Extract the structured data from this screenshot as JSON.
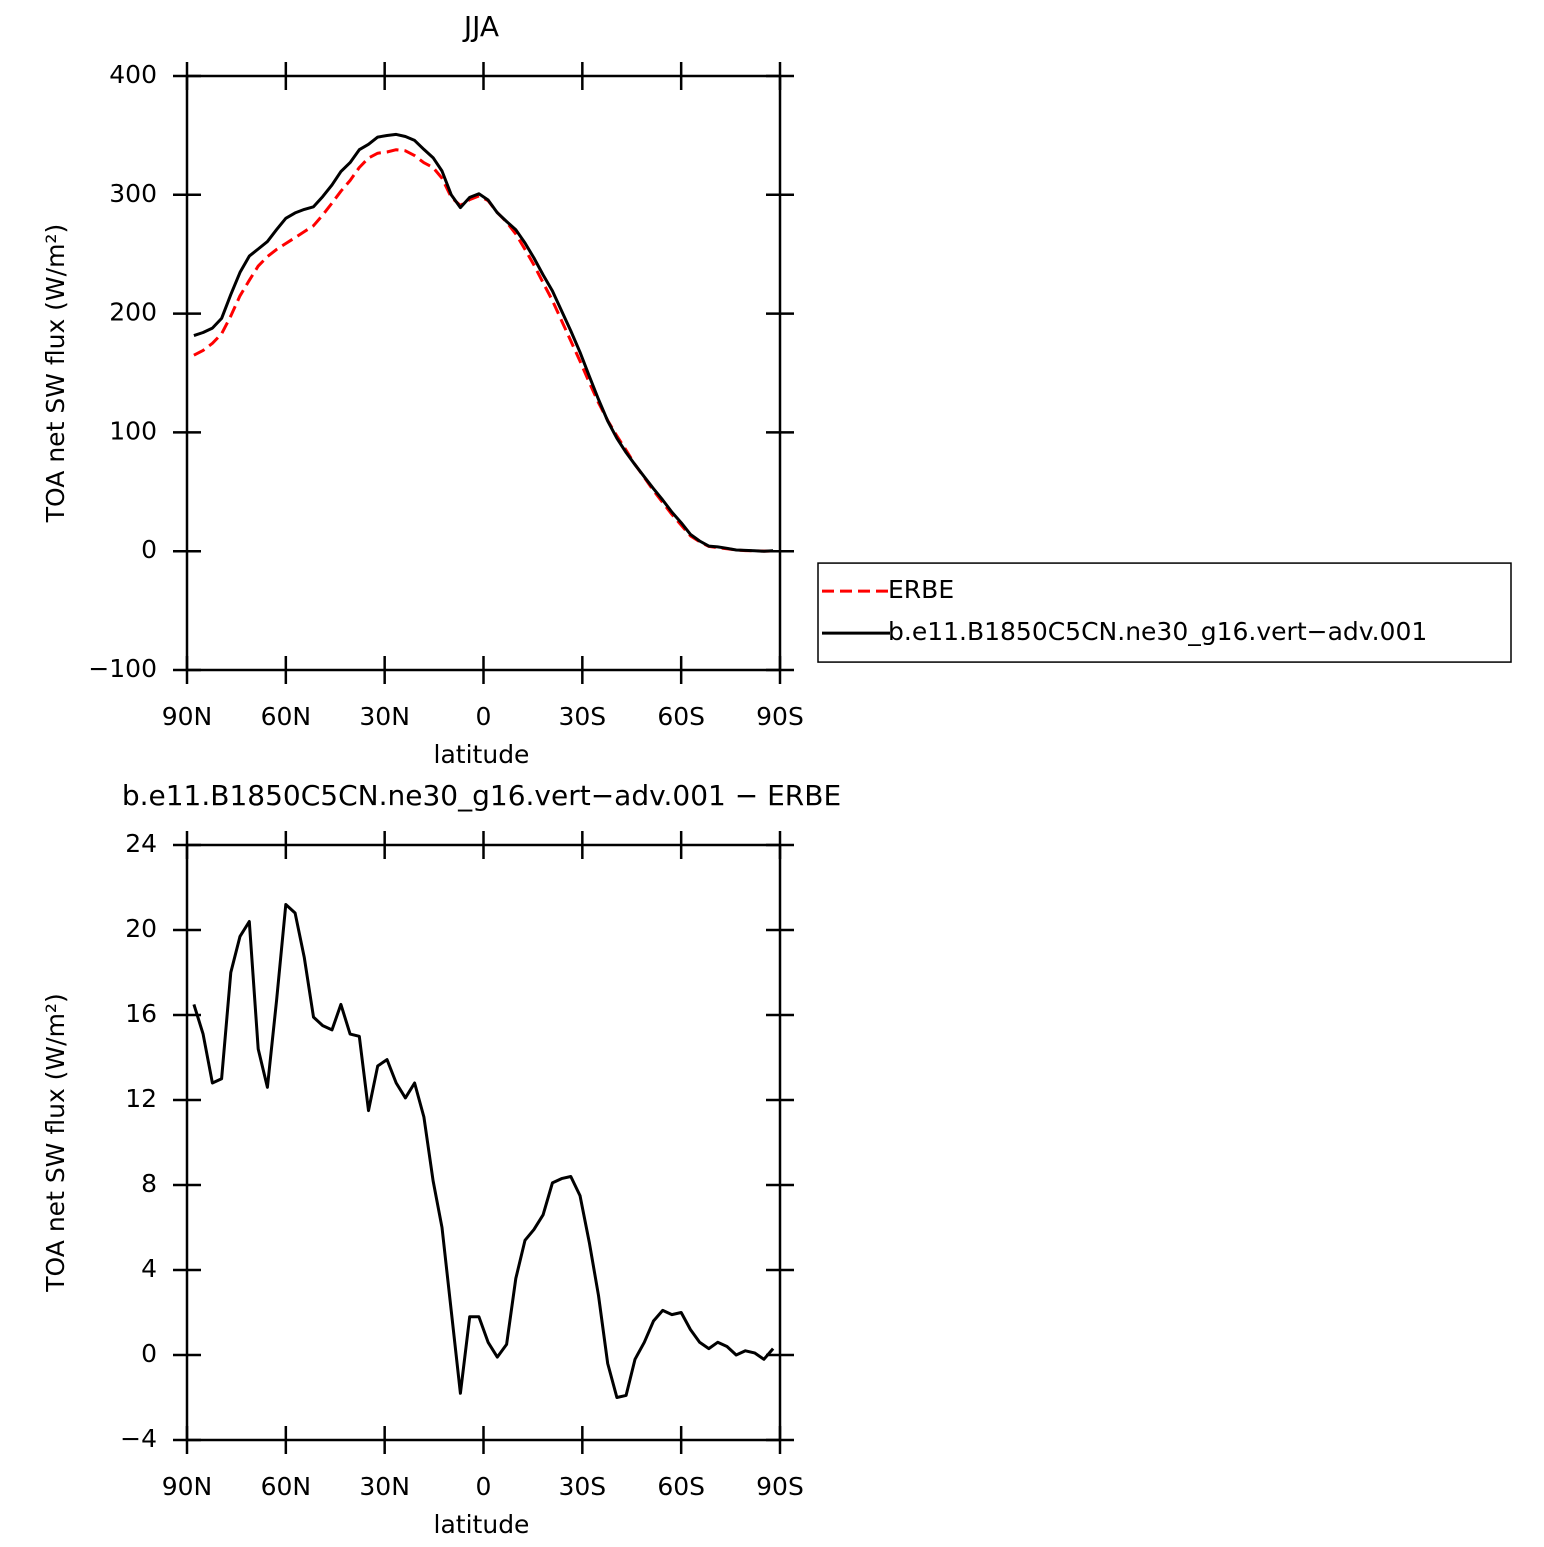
{
  "chart_data": [
    {
      "type": "line",
      "title": "JJA",
      "xlabel": "latitude",
      "ylabel": "TOA net SW flux (W/m²)",
      "x": [
        87.9,
        85.1,
        82.3,
        79.5,
        76.7,
        73.9,
        71.1,
        68.4,
        65.6,
        62.8,
        60.0,
        57.2,
        54.4,
        51.6,
        48.8,
        46.0,
        43.3,
        40.5,
        37.7,
        34.9,
        32.1,
        29.3,
        26.5,
        23.7,
        20.9,
        18.1,
        15.3,
        12.6,
        9.8,
        7.0,
        4.2,
        1.4,
        -1.4,
        -4.2,
        -7.0,
        -9.8,
        -12.6,
        -15.3,
        -18.1,
        -20.9,
        -23.7,
        -26.5,
        -29.3,
        -32.1,
        -34.9,
        -37.7,
        -40.5,
        -43.3,
        -46.0,
        -48.8,
        -51.6,
        -54.4,
        -57.2,
        -60.0,
        -62.8,
        -65.6,
        -68.4,
        -71.1,
        -73.9,
        -76.7,
        -79.5,
        -82.3,
        -85.1,
        -87.9
      ],
      "xlim": [
        90,
        -90
      ],
      "xticks": [
        {
          "value": 90,
          "label": "90N"
        },
        {
          "value": 60,
          "label": "60N"
        },
        {
          "value": 30,
          "label": "30N"
        },
        0,
        {
          "value": -30,
          "label": "30S"
        },
        {
          "value": -60,
          "label": "60S"
        },
        {
          "value": -90,
          "label": "90S"
        }
      ],
      "ylim": [
        -100,
        400
      ],
      "yticks": [
        {
          "value": -100,
          "label": "−100"
        },
        0,
        100,
        200,
        300,
        400
      ],
      "legend": "right",
      "series": [
        {
          "name": "ERBE",
          "color": "#ff0000",
          "line_style": "dashed",
          "values": [
            165,
            169,
            175,
            183,
            198,
            215,
            228,
            240,
            248,
            254,
            259,
            264,
            269,
            274,
            283,
            293,
            303,
            312,
            323,
            331,
            335,
            336,
            338,
            337,
            333,
            327,
            323,
            314,
            298,
            291,
            296,
            299,
            295,
            285,
            277,
            267,
            254,
            241,
            226,
            211,
            194,
            177,
            160,
            142,
            125,
            110,
            97,
            85,
            73,
            62,
            51,
            41,
            31,
            22,
            13,
            8,
            4,
            3,
            2,
            1,
            0.5,
            0.3,
            0.1,
            0
          ]
        },
        {
          "name": "b.e11.B1850C5CN.ne30_g16.vert−adv.001",
          "color": "#000000",
          "line_style": "solid",
          "values": [
            181.5,
            184.1,
            187.8,
            196,
            216,
            234.7,
            248.4,
            254.4,
            260.6,
            270.7,
            280.2,
            284.8,
            287.7,
            289.9,
            298.5,
            308.3,
            319.5,
            327.1,
            338,
            342.5,
            348.6,
            349.9,
            350.8,
            349.1,
            345.8,
            338.2,
            331.2,
            320,
            300.1,
            289.2,
            297.8,
            300.8,
            295.6,
            284.9,
            277.5,
            270.6,
            259.4,
            246.9,
            232.6,
            219.1,
            202.3,
            185.4,
            167.5,
            147.3,
            127.8,
            109.6,
            95,
            83.1,
            72.8,
            62.6,
            52.6,
            43.1,
            32.9,
            24,
            14.2,
            8.6,
            4.3,
            3.6,
            2.4,
            1,
            0.7,
            0.4,
            -0.1,
            0.3
          ]
        }
      ]
    },
    {
      "type": "line",
      "title": "b.e11.B1850C5CN.ne30_g16.vert−adv.001 − ERBE",
      "xlabel": "latitude",
      "ylabel": "TOA net SW flux (W/m²)",
      "x": [
        87.9,
        85.1,
        82.3,
        79.5,
        76.7,
        73.9,
        71.1,
        68.4,
        65.6,
        62.8,
        60.0,
        57.2,
        54.4,
        51.6,
        48.8,
        46.0,
        43.3,
        40.5,
        37.7,
        34.9,
        32.1,
        29.3,
        26.5,
        23.7,
        20.9,
        18.1,
        15.3,
        12.6,
        9.8,
        7.0,
        4.2,
        1.4,
        -1.4,
        -4.2,
        -7.0,
        -9.8,
        -12.6,
        -15.3,
        -18.1,
        -20.9,
        -23.7,
        -26.5,
        -29.3,
        -32.1,
        -34.9,
        -37.7,
        -40.5,
        -43.3,
        -46.0,
        -48.8,
        -51.6,
        -54.4,
        -57.2,
        -60.0,
        -62.8,
        -65.6,
        -68.4,
        -71.1,
        -73.9,
        -76.7,
        -79.5,
        -82.3,
        -85.1,
        -87.9
      ],
      "xlim": [
        90,
        -90
      ],
      "xticks": [
        {
          "value": 90,
          "label": "90N"
        },
        {
          "value": 60,
          "label": "60N"
        },
        {
          "value": 30,
          "label": "30N"
        },
        0,
        {
          "value": -30,
          "label": "30S"
        },
        {
          "value": -60,
          "label": "60S"
        },
        {
          "value": -90,
          "label": "90S"
        }
      ],
      "ylim": [
        -4,
        24
      ],
      "yticks": [
        {
          "value": -4,
          "label": "−4"
        },
        0,
        4,
        8,
        12,
        16,
        20,
        24
      ],
      "series": [
        {
          "color": "#000000",
          "line_style": "solid",
          "values": [
            16.5,
            15.1,
            12.8,
            13.0,
            18.0,
            19.7,
            20.4,
            14.4,
            12.6,
            16.7,
            21.2,
            20.8,
            18.7,
            15.9,
            15.5,
            15.3,
            16.5,
            15.1,
            15.0,
            11.5,
            13.6,
            13.9,
            12.8,
            12.1,
            12.8,
            11.2,
            8.2,
            6.0,
            2.1,
            -1.8,
            1.8,
            1.8,
            0.6,
            -0.1,
            0.5,
            3.6,
            5.4,
            5.9,
            6.6,
            8.1,
            8.3,
            8.4,
            7.5,
            5.3,
            2.8,
            -0.4,
            -2.0,
            -1.9,
            -0.2,
            0.6,
            1.6,
            2.1,
            1.9,
            2.0,
            1.2,
            0.6,
            0.3,
            0.6,
            0.4,
            0.0,
            0.2,
            0.1,
            -0.2,
            0.3
          ]
        }
      ]
    }
  ]
}
